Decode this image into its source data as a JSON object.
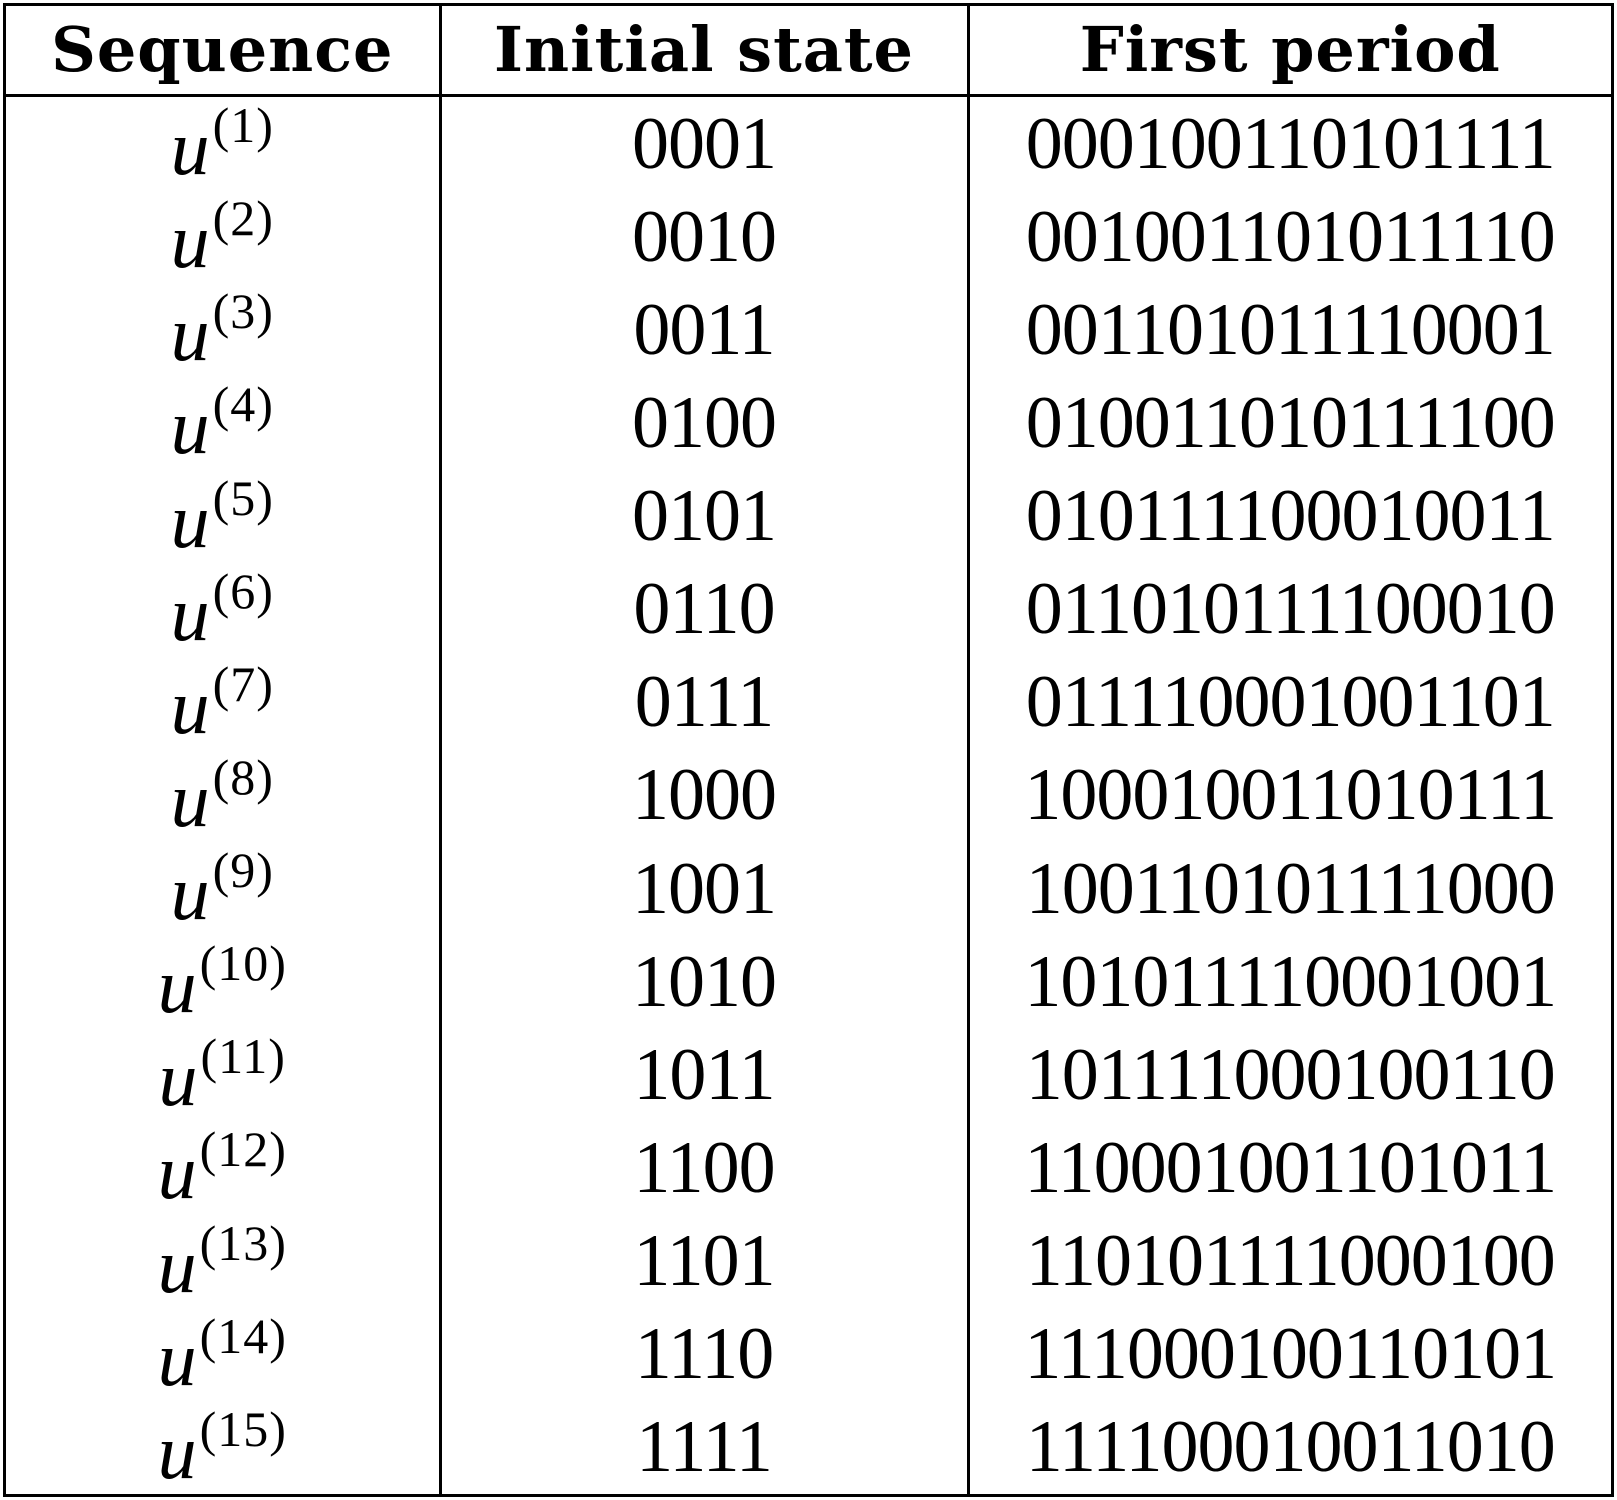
{
  "table": {
    "headers": [
      "Sequence",
      "Initial state",
      "First period"
    ],
    "rows": [
      {
        "var": "u",
        "idx": "(1)",
        "state": "0001",
        "period": "000100110101111"
      },
      {
        "var": "u",
        "idx": "(2)",
        "state": "0010",
        "period": "001001101011110"
      },
      {
        "var": "u",
        "idx": "(3)",
        "state": "0011",
        "period": "001101011110001"
      },
      {
        "var": "u",
        "idx": "(4)",
        "state": "0100",
        "period": "010011010111100"
      },
      {
        "var": "u",
        "idx": "(5)",
        "state": "0101",
        "period": "010111100010011"
      },
      {
        "var": "u",
        "idx": "(6)",
        "state": "0110",
        "period": "011010111100010"
      },
      {
        "var": "u",
        "idx": "(7)",
        "state": "0111",
        "period": "011110001001101"
      },
      {
        "var": "u",
        "idx": "(8)",
        "state": "1000",
        "period": "100010011010111"
      },
      {
        "var": "u",
        "idx": "(9)",
        "state": "1001",
        "period": "100110101111000"
      },
      {
        "var": "u",
        "idx": "(10)",
        "state": "1010",
        "period": "101011110001001"
      },
      {
        "var": "u",
        "idx": "(11)",
        "state": "1011",
        "period": "101111000100110"
      },
      {
        "var": "u",
        "idx": "(12)",
        "state": "1100",
        "period": "110001001101011"
      },
      {
        "var": "u",
        "idx": "(13)",
        "state": "1101",
        "period": "110101111000100"
      },
      {
        "var": "u",
        "idx": "(14)",
        "state": "1110",
        "period": "111000100110101"
      },
      {
        "var": "u",
        "idx": "(15)",
        "state": "1111",
        "period": "111100010011010"
      }
    ]
  }
}
